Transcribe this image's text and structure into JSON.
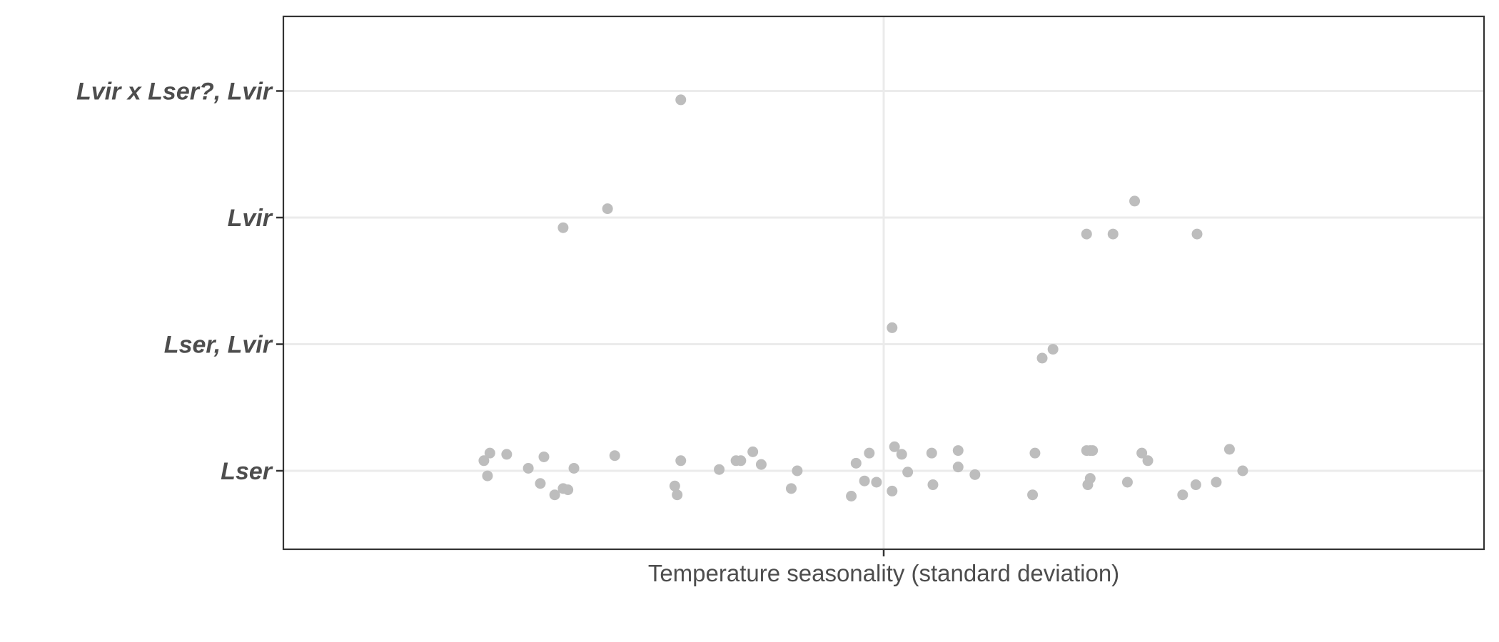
{
  "chart_data": {
    "type": "scatter",
    "title": "",
    "xlabel": "Temperature seasonality (standard deviation)",
    "ylabel": "",
    "y_categories": [
      "Lser",
      "Lser, Lvir",
      "Lvir",
      "Lvir x Lser?, Lvir"
    ],
    "x_ticks": [],
    "xlim": [
      0,
      1
    ],
    "grid": true,
    "legend": "none",
    "point_color": "#bdbdbd",
    "points": [
      {
        "x": 0.167,
        "y": "Lser",
        "jitter": 0.08
      },
      {
        "x": 0.172,
        "y": "Lser",
        "jitter": 0.14
      },
      {
        "x": 0.17,
        "y": "Lser",
        "jitter": -0.04
      },
      {
        "x": 0.186,
        "y": "Lser",
        "jitter": 0.13
      },
      {
        "x": 0.204,
        "y": "Lser",
        "jitter": 0.02
      },
      {
        "x": 0.214,
        "y": "Lser",
        "jitter": -0.1
      },
      {
        "x": 0.217,
        "y": "Lser",
        "jitter": 0.11
      },
      {
        "x": 0.226,
        "y": "Lser",
        "jitter": -0.19
      },
      {
        "x": 0.233,
        "y": "Lser",
        "jitter": -0.14
      },
      {
        "x": 0.237,
        "y": "Lser",
        "jitter": -0.15
      },
      {
        "x": 0.242,
        "y": "Lser",
        "jitter": 0.02
      },
      {
        "x": 0.276,
        "y": "Lser",
        "jitter": 0.12
      },
      {
        "x": 0.326,
        "y": "Lser",
        "jitter": -0.12
      },
      {
        "x": 0.328,
        "y": "Lser",
        "jitter": -0.19
      },
      {
        "x": 0.331,
        "y": "Lser",
        "jitter": 0.08
      },
      {
        "x": 0.363,
        "y": "Lser",
        "jitter": 0.01
      },
      {
        "x": 0.377,
        "y": "Lser",
        "jitter": 0.08
      },
      {
        "x": 0.381,
        "y": "Lser",
        "jitter": 0.08
      },
      {
        "x": 0.391,
        "y": "Lser",
        "jitter": 0.15
      },
      {
        "x": 0.398,
        "y": "Lser",
        "jitter": 0.05
      },
      {
        "x": 0.423,
        "y": "Lser",
        "jitter": -0.14
      },
      {
        "x": 0.428,
        "y": "Lser",
        "jitter": 0.0
      },
      {
        "x": 0.473,
        "y": "Lser",
        "jitter": -0.2
      },
      {
        "x": 0.477,
        "y": "Lser",
        "jitter": 0.06
      },
      {
        "x": 0.484,
        "y": "Lser",
        "jitter": -0.08
      },
      {
        "x": 0.488,
        "y": "Lser",
        "jitter": 0.14
      },
      {
        "x": 0.494,
        "y": "Lser",
        "jitter": -0.09
      },
      {
        "x": 0.507,
        "y": "Lser",
        "jitter": -0.16
      },
      {
        "x": 0.509,
        "y": "Lser",
        "jitter": 0.19
      },
      {
        "x": 0.515,
        "y": "Lser",
        "jitter": 0.13
      },
      {
        "x": 0.52,
        "y": "Lser",
        "jitter": -0.01
      },
      {
        "x": 0.54,
        "y": "Lser",
        "jitter": 0.14
      },
      {
        "x": 0.541,
        "y": "Lser",
        "jitter": -0.11
      },
      {
        "x": 0.562,
        "y": "Lser",
        "jitter": 0.16
      },
      {
        "x": 0.562,
        "y": "Lser",
        "jitter": 0.03
      },
      {
        "x": 0.576,
        "y": "Lser",
        "jitter": -0.03
      },
      {
        "x": 0.624,
        "y": "Lser",
        "jitter": -0.19
      },
      {
        "x": 0.626,
        "y": "Lser",
        "jitter": 0.14
      },
      {
        "x": 0.669,
        "y": "Lser",
        "jitter": 0.16
      },
      {
        "x": 0.672,
        "y": "Lser",
        "jitter": 0.16
      },
      {
        "x": 0.67,
        "y": "Lser",
        "jitter": -0.11
      },
      {
        "x": 0.672,
        "y": "Lser",
        "jitter": -0.06
      },
      {
        "x": 0.674,
        "y": "Lser",
        "jitter": 0.16
      },
      {
        "x": 0.703,
        "y": "Lser",
        "jitter": -0.09
      },
      {
        "x": 0.715,
        "y": "Lser",
        "jitter": 0.14
      },
      {
        "x": 0.72,
        "y": "Lser",
        "jitter": 0.08
      },
      {
        "x": 0.749,
        "y": "Lser",
        "jitter": -0.19
      },
      {
        "x": 0.76,
        "y": "Lser",
        "jitter": -0.11
      },
      {
        "x": 0.777,
        "y": "Lser",
        "jitter": -0.09
      },
      {
        "x": 0.788,
        "y": "Lser",
        "jitter": 0.17
      },
      {
        "x": 0.799,
        "y": "Lser",
        "jitter": 0.0
      },
      {
        "x": 0.507,
        "y": "Lser, Lvir",
        "jitter": 0.13
      },
      {
        "x": 0.632,
        "y": "Lser, Lvir",
        "jitter": -0.11
      },
      {
        "x": 0.641,
        "y": "Lser, Lvir",
        "jitter": -0.04
      },
      {
        "x": 0.233,
        "y": "Lvir",
        "jitter": -0.08
      },
      {
        "x": 0.27,
        "y": "Lvir",
        "jitter": 0.07
      },
      {
        "x": 0.669,
        "y": "Lvir",
        "jitter": -0.13
      },
      {
        "x": 0.691,
        "y": "Lvir",
        "jitter": -0.13
      },
      {
        "x": 0.709,
        "y": "Lvir",
        "jitter": 0.13
      },
      {
        "x": 0.761,
        "y": "Lvir",
        "jitter": -0.13
      },
      {
        "x": 0.331,
        "y": "Lvir x Lser?, Lvir",
        "jitter": -0.07
      }
    ]
  }
}
